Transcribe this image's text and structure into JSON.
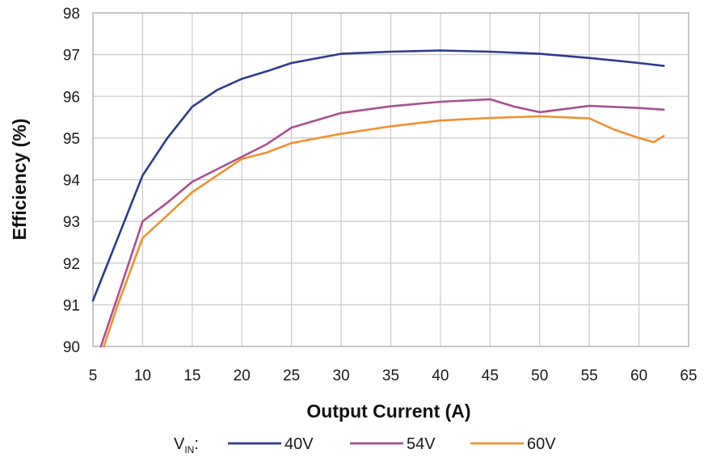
{
  "chart_data": {
    "type": "line",
    "title": "",
    "xlabel": "Output Current (A)",
    "ylabel": "Efficiency (%)",
    "xlim": [
      5,
      65
    ],
    "ylim": [
      90,
      98
    ],
    "xticks": [
      5,
      10,
      15,
      20,
      25,
      30,
      35,
      40,
      45,
      50,
      55,
      60,
      65
    ],
    "yticks": [
      90,
      91,
      92,
      93,
      94,
      95,
      96,
      97,
      98
    ],
    "grid": true,
    "legend_position": "bottom",
    "legend_prefix": "V",
    "legend_prefix_sub": "IN",
    "legend_suffix": ":",
    "series": [
      {
        "name": "40V",
        "color": "#2e3a8f",
        "points": [
          [
            5,
            91.1
          ],
          [
            7.5,
            92.6
          ],
          [
            10,
            94.1
          ],
          [
            12.5,
            95.0
          ],
          [
            15,
            95.75
          ],
          [
            17.5,
            96.15
          ],
          [
            20,
            96.42
          ],
          [
            22.5,
            96.6
          ],
          [
            25,
            96.8
          ],
          [
            30,
            97.02
          ],
          [
            35,
            97.07
          ],
          [
            40,
            97.1
          ],
          [
            45,
            97.07
          ],
          [
            50,
            97.02
          ],
          [
            55,
            96.92
          ],
          [
            60,
            96.8
          ],
          [
            62.5,
            96.73
          ]
        ]
      },
      {
        "name": "54V",
        "color": "#a8508f",
        "points": [
          [
            5.8,
            90.0
          ],
          [
            7.5,
            91.2
          ],
          [
            10,
            93.0
          ],
          [
            12.5,
            93.45
          ],
          [
            15,
            93.95
          ],
          [
            17.5,
            94.25
          ],
          [
            20,
            94.55
          ],
          [
            22.5,
            94.85
          ],
          [
            25,
            95.25
          ],
          [
            30,
            95.6
          ],
          [
            35,
            95.76
          ],
          [
            40,
            95.87
          ],
          [
            45,
            95.93
          ],
          [
            47.5,
            95.75
          ],
          [
            50,
            95.62
          ],
          [
            55,
            95.77
          ],
          [
            60,
            95.72
          ],
          [
            62.5,
            95.68
          ]
        ]
      },
      {
        "name": "60V",
        "color": "#f0912e",
        "points": [
          [
            6.1,
            90.0
          ],
          [
            7.5,
            91.0
          ],
          [
            10,
            92.6
          ],
          [
            12.5,
            93.15
          ],
          [
            15,
            93.7
          ],
          [
            17.5,
            94.1
          ],
          [
            20,
            94.5
          ],
          [
            22.5,
            94.65
          ],
          [
            25,
            94.88
          ],
          [
            30,
            95.1
          ],
          [
            35,
            95.28
          ],
          [
            40,
            95.42
          ],
          [
            45,
            95.48
          ],
          [
            50,
            95.52
          ],
          [
            55,
            95.47
          ],
          [
            57.5,
            95.2
          ],
          [
            60,
            95.0
          ],
          [
            61.5,
            94.9
          ],
          [
            62.5,
            95.05
          ]
        ]
      }
    ]
  }
}
